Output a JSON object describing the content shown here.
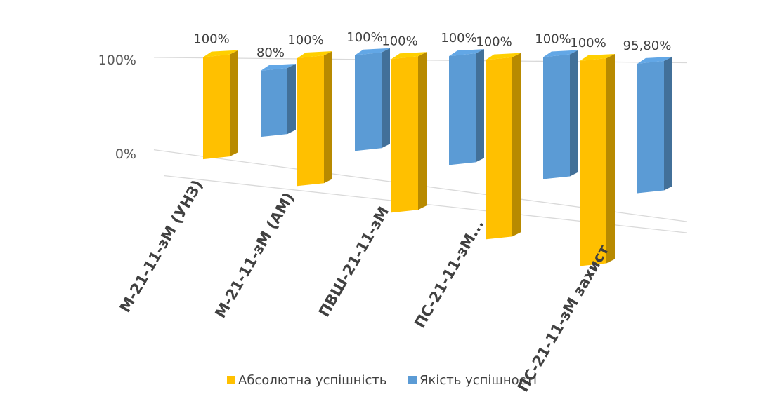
{
  "chart_data": {
    "type": "bar",
    "title": "",
    "xlabel": "",
    "ylabel": "",
    "ylim": [
      0,
      1
    ],
    "y_ticks": [
      {
        "value": 0,
        "label": "0%"
      },
      {
        "value": 1,
        "label": "100%"
      }
    ],
    "categories": [
      "М-21-11-зМ (УНЗ)",
      "М-21-11-зМ (АМ)",
      "ПВШ-21-11-зМ",
      "ПС-21-11-зМ...",
      "ПС-21-11-зМ захист"
    ],
    "series": [
      {
        "name": "Абсолютна успішність",
        "color": "#FFC000",
        "values": [
          1.0,
          1.0,
          1.0,
          1.0,
          1.0
        ],
        "labels": [
          "100%",
          "100%",
          "100%",
          "100%",
          "100%"
        ]
      },
      {
        "name": "Якість успішності",
        "color": "#5B9BD5",
        "values": [
          0.8,
          1.0,
          1.0,
          1.0,
          0.958
        ],
        "labels": [
          "80%",
          "100%",
          "100%",
          "100%",
          "95,80%"
        ]
      }
    ],
    "legend": "bottom",
    "grid": true
  }
}
